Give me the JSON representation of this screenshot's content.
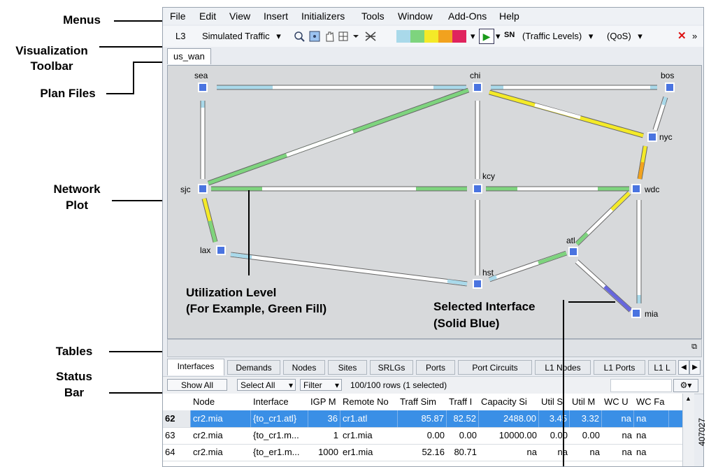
{
  "callouts": {
    "menus": "Menus",
    "viz_toolbar_1": "Visualization",
    "viz_toolbar_2": "Toolbar",
    "plan_files": "Plan Files",
    "network_plot_1": "Network",
    "network_plot_2": "Plot",
    "tables": "Tables",
    "status_bar_1": "Status",
    "status_bar_2": "Bar",
    "utilization_1": "Utilization Level",
    "utilization_2": "(For Example, Green Fill)",
    "selected_1": "Selected Interface",
    "selected_2": "(Solid Blue)"
  },
  "figure_id": "407027",
  "menu": [
    "File",
    "Edit",
    "View",
    "Insert",
    "Initializers",
    "Tools",
    "Window",
    "Add-Ons",
    "Help"
  ],
  "toolbar": {
    "layer": "L3",
    "mode": "Simulated Traffic",
    "traffic_levels": "(Traffic Levels)",
    "qos": "(QoS)",
    "overflow": "»",
    "sn_label": "SN"
  },
  "plan_tab": "us_wan",
  "nodes": {
    "sea": "sea",
    "chi": "chi",
    "bos": "bos",
    "nyc": "nyc",
    "sjc": "sjc",
    "kcy": "kcy",
    "wdc": "wdc",
    "lax": "lax",
    "atl": "atl",
    "hst": "hst",
    "mia": "mia"
  },
  "table_tabs": [
    "Interfaces",
    "Demands",
    "Nodes",
    "Sites",
    "SRLGs",
    "Ports",
    "Port Circuits",
    "L1 Nodes",
    "L1 Ports",
    "L1 L"
  ],
  "status": {
    "show_all": "Show All",
    "select_all": "Select All",
    "filter": "Filter",
    "rows": "100/100 rows (1 selected)"
  },
  "grid": {
    "headers": [
      "",
      "Node",
      "Interface",
      "IGP M",
      "Remote No",
      "Traff Sim",
      "Traff I",
      "Capacity Si",
      "Util S",
      "Util M",
      "WC U",
      "WC Fa"
    ],
    "rows": [
      [
        "62",
        "cr2.mia",
        "{to_cr1.atl}",
        "36",
        "cr1.atl",
        "85.87",
        "82.52",
        "2488.00",
        "3.45",
        "3.32",
        "na",
        "na"
      ],
      [
        "63",
        "cr2.mia",
        "{to_cr1.m...",
        "1",
        "cr1.mia",
        "0.00",
        "0.00",
        "10000.00",
        "0.00",
        "0.00",
        "na",
        "na"
      ],
      [
        "64",
        "cr2.mia",
        "{to_er1.m...",
        "1000",
        "er1.mia",
        "52.16",
        "80.71",
        "na",
        "na",
        "na",
        "na",
        "na"
      ]
    ]
  },
  "colors": {
    "selected_row": "#3a8fe6",
    "node": "#4a74e0",
    "util_green": "#7ed47e",
    "util_yellow": "#f4ea28",
    "util_orange": "#f2a21e",
    "util_lightblue": "#a9d9ea",
    "selected_interface": "#6666dd"
  }
}
